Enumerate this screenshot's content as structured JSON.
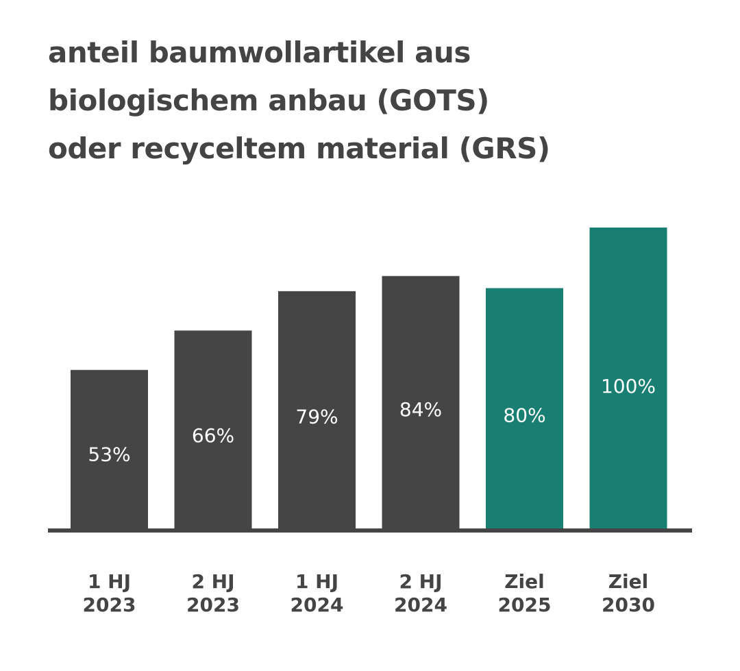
{
  "title_lines": [
    "anteil baumwollartikel aus",
    "biologischem anbau (GOTS)",
    "oder recyceltem material (GRS)"
  ],
  "colors": {
    "actual": "#454545",
    "target": "#197f73",
    "text": "#444444",
    "bar_label": "#ffffff",
    "baseline": "#454545"
  },
  "chart_data": {
    "type": "bar",
    "title": "anteil baumwollartikel aus biologischem anbau (GOTS) oder recyceltem material (GRS)",
    "categories": [
      [
        "1 HJ",
        "2023"
      ],
      [
        "2 HJ",
        "2023"
      ],
      [
        "1 HJ",
        "2024"
      ],
      [
        "2 HJ",
        "2024"
      ],
      [
        "Ziel",
        "2025"
      ],
      [
        "Ziel",
        "2030"
      ]
    ],
    "values": [
      53,
      66,
      79,
      84,
      80,
      100
    ],
    "value_labels": [
      "53%",
      "66%",
      "79%",
      "84%",
      "80%",
      "100%"
    ],
    "bar_kind": [
      "actual",
      "actual",
      "actual",
      "actual",
      "target",
      "target"
    ],
    "xlabel": "",
    "ylabel": "",
    "ylim": [
      0,
      100
    ],
    "grid": false,
    "legend": "none"
  }
}
